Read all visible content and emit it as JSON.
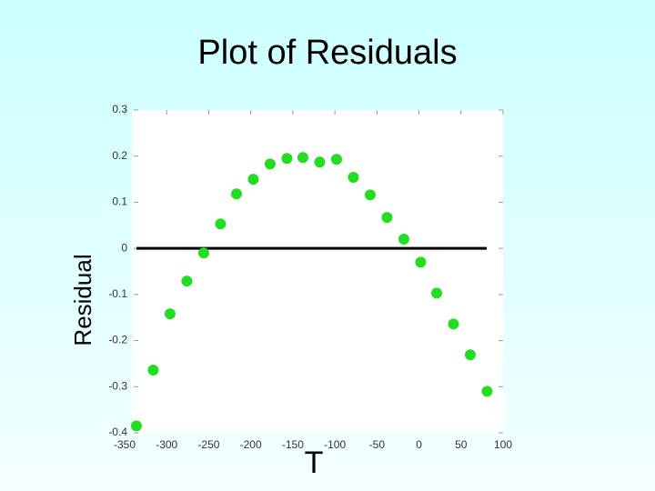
{
  "chart_data": {
    "type": "scatter",
    "title": "Plot of Residuals",
    "x_label": "T",
    "y_label": "Residual",
    "series": [
      {
        "color": "#22dd22",
        "x": [
          -336,
          -316,
          -296,
          -276,
          -256,
          -236,
          -217,
          -197,
          -177,
          -157,
          -138,
          -118,
          -98,
          -78,
          -58,
          -38,
          -18,
          2,
          21,
          41,
          61,
          81
        ],
        "values": [
          -0.385,
          -0.264,
          -0.142,
          -0.071,
          -0.01,
          0.053,
          0.118,
          0.15,
          0.183,
          0.195,
          0.197,
          0.187,
          0.193,
          0.154,
          0.116,
          0.067,
          0.02,
          -0.03,
          -0.097,
          -0.164,
          -0.231,
          -0.31
        ]
      }
    ],
    "reference_line": 0,
    "xlim": [
      -350,
      100
    ],
    "xticks": [
      -350,
      -300,
      -250,
      -200,
      -150,
      -100,
      -50,
      0,
      50,
      100
    ],
    "ylim": [
      -0.4,
      0.3
    ],
    "yticks": [
      -0.4,
      -0.3,
      -0.2,
      -0.1,
      0,
      0.1,
      0.2,
      0.3
    ]
  }
}
